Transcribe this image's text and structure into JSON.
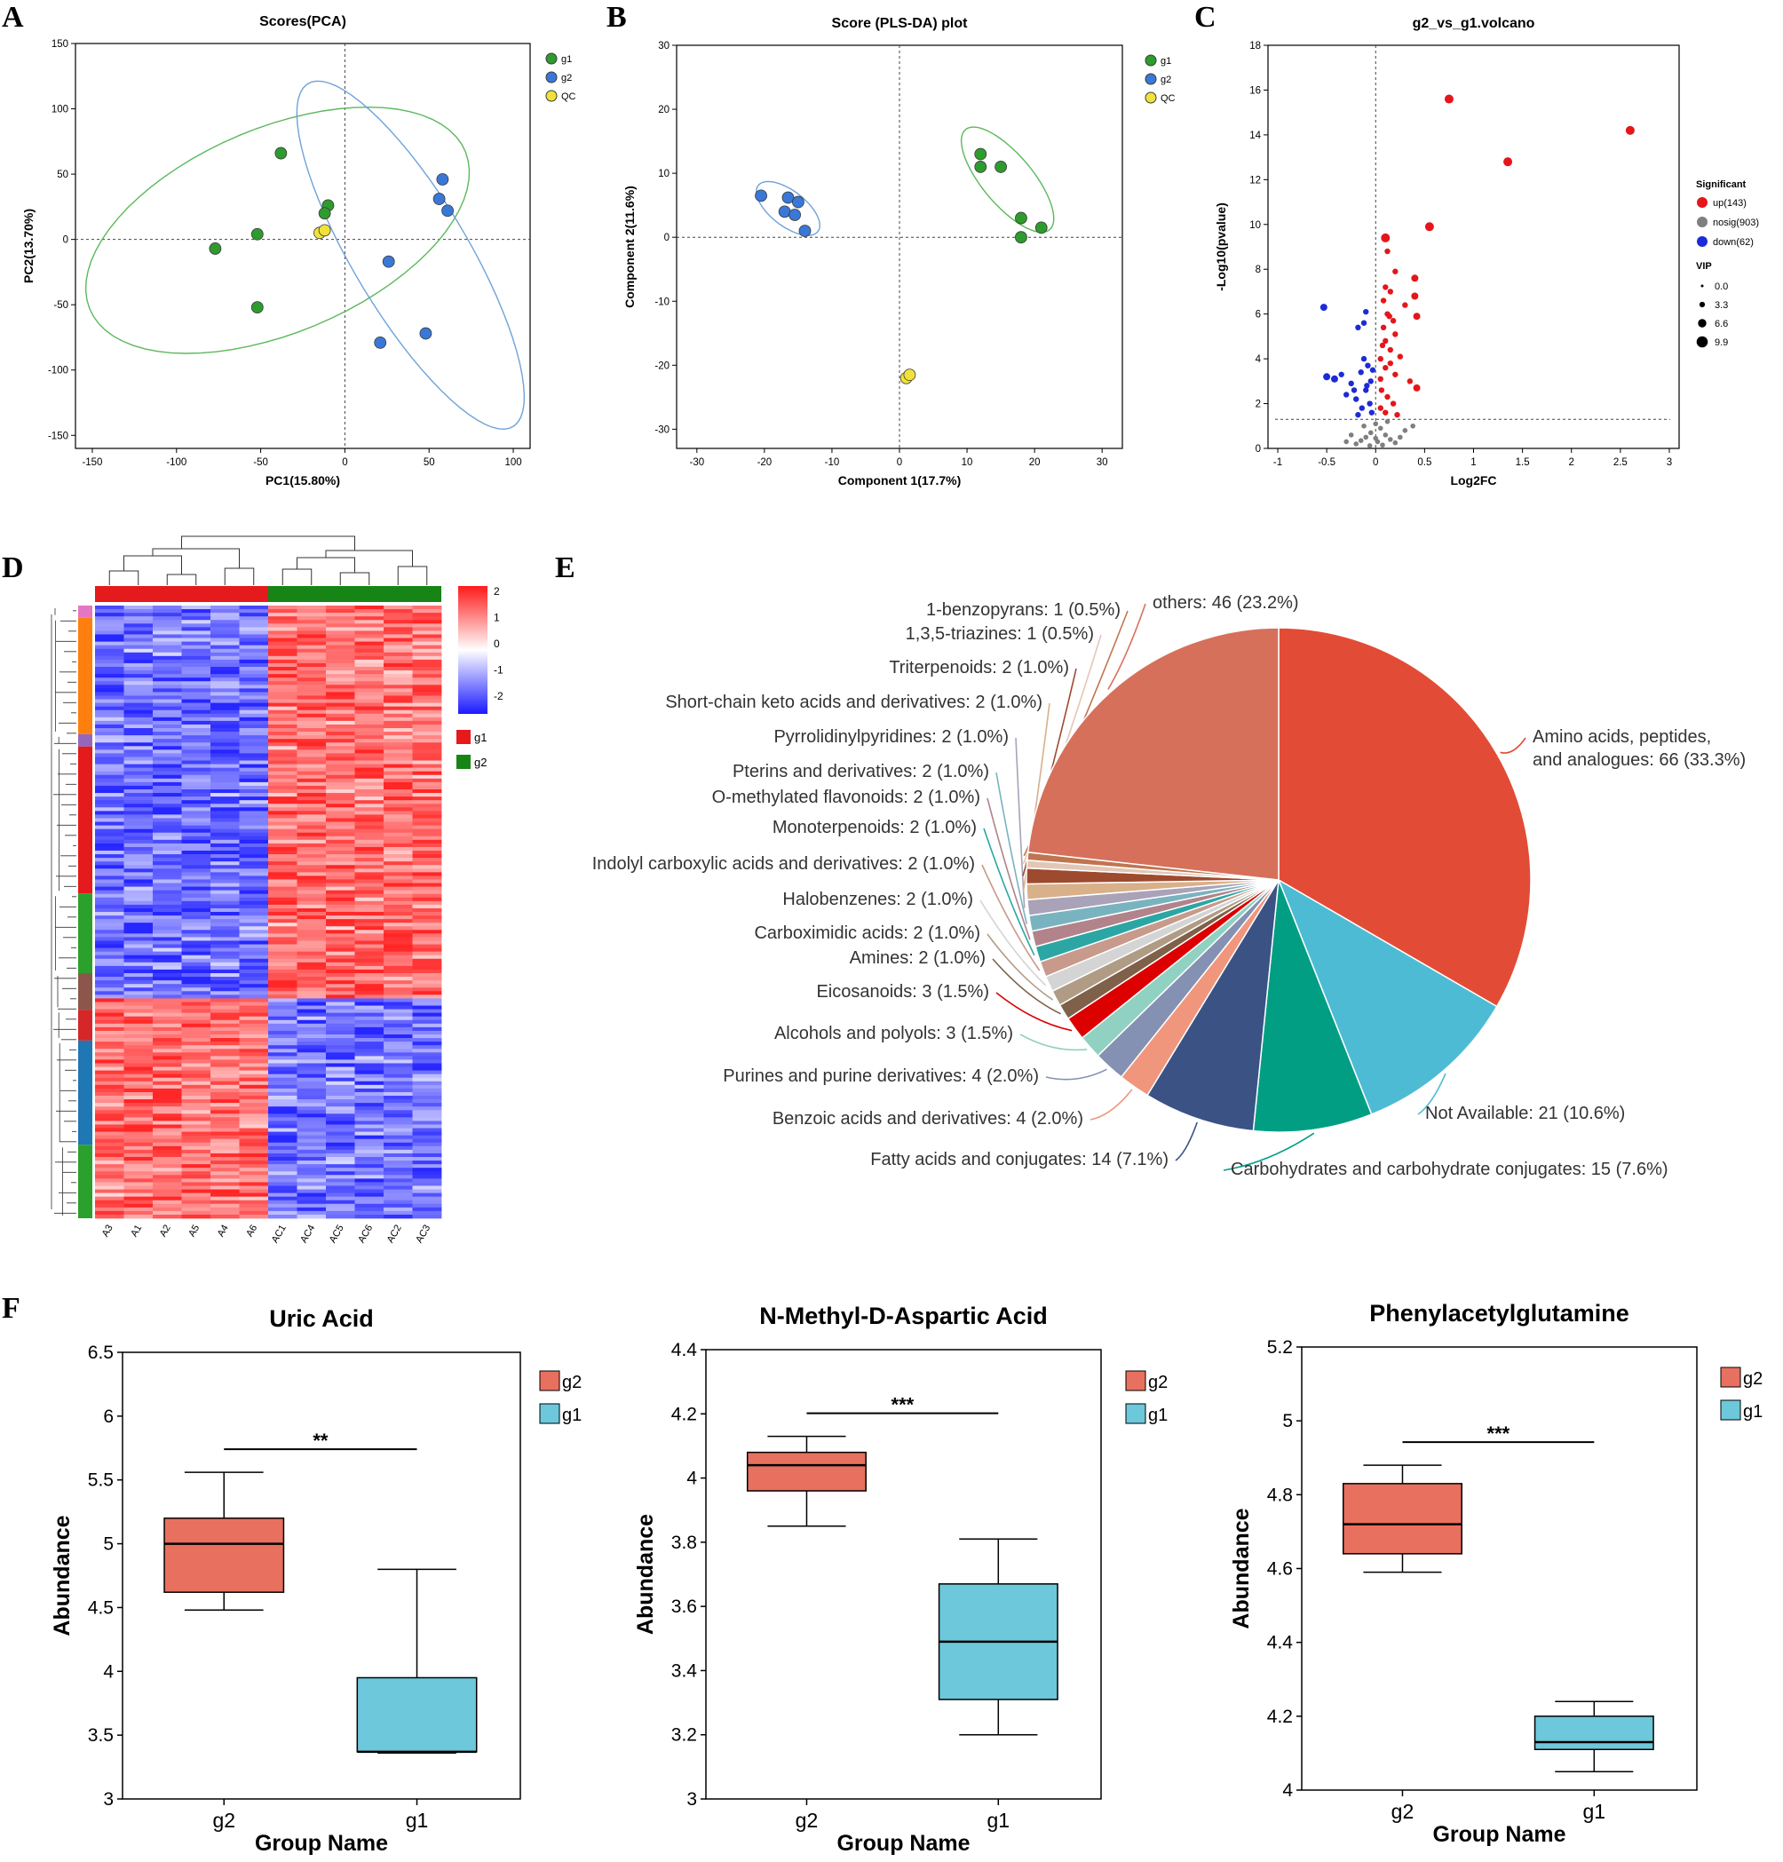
{
  "chart_data": [
    {
      "panel": "A",
      "type": "scatter",
      "title": "Scores(PCA)",
      "xlabel": "PC1(15.80%)",
      "ylabel": "PC2(13.70%)",
      "xlim": [
        -160,
        110
      ],
      "ylim": [
        -160,
        150
      ],
      "xticks": [
        -150,
        -100,
        -50,
        0,
        50,
        100
      ],
      "yticks": [
        -150,
        -100,
        -50,
        0,
        50,
        100,
        150
      ],
      "legend": [
        "g1",
        "g2",
        "QC"
      ],
      "series": [
        {
          "name": "g1",
          "color": "#2e9b2e",
          "points": [
            [
              -38,
              66
            ],
            [
              -10,
              26
            ],
            [
              -12,
              20
            ],
            [
              -52,
              4
            ],
            [
              -77,
              -7
            ],
            [
              -52,
              -52
            ]
          ]
        },
        {
          "name": "g2",
          "color": "#3a78d8",
          "points": [
            [
              58,
              46
            ],
            [
              56,
              31
            ],
            [
              61,
              22
            ],
            [
              26,
              -17
            ],
            [
              48,
              -72
            ],
            [
              21,
              -79
            ]
          ]
        },
        {
          "name": "QC",
          "color": "#f1e23a",
          "points": [
            [
              -15,
              5
            ],
            [
              -12,
              7
            ]
          ]
        }
      ],
      "ellipses": [
        {
          "group": "g1",
          "color": "#5cb85c",
          "cx": -40,
          "cy": 7,
          "rx": 128,
          "ry": 74,
          "angle": 34
        },
        {
          "group": "g2",
          "color": "#6ea3d8",
          "cx": 39,
          "cy": -12,
          "rx": 145,
          "ry": 36,
          "angle": -66
        }
      ]
    },
    {
      "panel": "B",
      "type": "scatter",
      "title": "Score (PLS-DA) plot",
      "xlabel": "Component 1(17.7%)",
      "ylabel": "Component 2(11.6%)",
      "xlim": [
        -33,
        33
      ],
      "ylim": [
        -33,
        30
      ],
      "xticks": [
        -30,
        -20,
        -10,
        0,
        10,
        20,
        30
      ],
      "yticks": [
        -30,
        -20,
        -10,
        0,
        10,
        20,
        30
      ],
      "legend": [
        "g1",
        "g2",
        "QC"
      ],
      "series": [
        {
          "name": "g1",
          "color": "#2e9b2e",
          "points": [
            [
              12,
              13
            ],
            [
              12,
              11
            ],
            [
              15,
              11
            ],
            [
              18,
              3
            ],
            [
              21,
              1.5
            ],
            [
              18,
              0
            ]
          ]
        },
        {
          "name": "g2",
          "color": "#3a78d8",
          "points": [
            [
              -20.5,
              6.5
            ],
            [
              -16.5,
              6.2
            ],
            [
              -15,
              5.5
            ],
            [
              -17,
              4
            ],
            [
              -15.5,
              3.5
            ],
            [
              -14,
              1
            ]
          ]
        },
        {
          "name": "QC",
          "color": "#f1e23a",
          "points": [
            [
              1,
              -22
            ],
            [
              1.5,
              -21.5
            ]
          ]
        }
      ],
      "ellipses": [
        {
          "group": "g1",
          "color": "#5cb85c",
          "cx": 16,
          "cy": 9,
          "rx": 10,
          "ry": 3.8,
          "angle": -52
        },
        {
          "group": "g2",
          "color": "#6ea3d8",
          "cx": -16.5,
          "cy": 4.5,
          "rx": 5.7,
          "ry": 2.7,
          "angle": -40
        }
      ]
    },
    {
      "panel": "C",
      "type": "scatter",
      "title": "g2_vs_g1.volcano",
      "xlabel": "Log2FC",
      "ylabel": "-Log10(pvalue)",
      "xlim": [
        -1.1,
        3.1
      ],
      "ylim": [
        0,
        18
      ],
      "xticks": [
        -1,
        -0.5,
        0,
        0.5,
        1,
        1.5,
        2,
        2.5,
        3
      ],
      "yticks": [
        0,
        2,
        4,
        6,
        8,
        10,
        12,
        14,
        16,
        18
      ],
      "threshold_y": 1.3,
      "legend_title": "Significant",
      "legend": [
        "up(143)",
        "nosig(903)",
        "down(62)"
      ],
      "vip_title": "VIP",
      "vip_legend": [
        "0.0",
        "3.3",
        "6.6",
        "9.9"
      ],
      "series": [
        {
          "name": "up",
          "color": "#e4161b",
          "points": [
            [
              0.75,
              15.6
            ],
            [
              2.6,
              14.2
            ],
            [
              1.35,
              12.8
            ],
            [
              0.55,
              9.9
            ],
            [
              0.1,
              9.4
            ],
            [
              0.12,
              8.8
            ],
            [
              0.2,
              7.9
            ],
            [
              0.4,
              7.6
            ],
            [
              0.4,
              6.8
            ],
            [
              0.42,
              5.9
            ],
            [
              0.1,
              7.2
            ],
            [
              0.15,
              7.0
            ],
            [
              0.3,
              6.4
            ],
            [
              0.12,
              6.0
            ],
            [
              0.18,
              5.7
            ],
            [
              0.08,
              5.4
            ],
            [
              0.2,
              5.1
            ],
            [
              0.1,
              4.8
            ],
            [
              0.15,
              4.4
            ],
            [
              0.25,
              4.1
            ],
            [
              0.05,
              4.0
            ],
            [
              0.1,
              3.6
            ],
            [
              0.2,
              3.3
            ],
            [
              0.35,
              3.0
            ],
            [
              0.42,
              2.7
            ],
            [
              0.06,
              2.6
            ],
            [
              0.12,
              2.3
            ],
            [
              0.18,
              2.0
            ],
            [
              0.05,
              1.8
            ],
            [
              0.1,
              1.6
            ],
            [
              0.22,
              1.5
            ],
            [
              0.05,
              3.1
            ],
            [
              0.15,
              3.8
            ],
            [
              0.08,
              6.6
            ],
            [
              0.14,
              5.9
            ],
            [
              0.07,
              4.6
            ]
          ]
        },
        {
          "name": "nosig",
          "color": "#7f7f7f",
          "points": [
            [
              0.0,
              1.1
            ],
            [
              0.05,
              0.9
            ],
            [
              -0.05,
              0.7
            ],
            [
              0.1,
              0.6
            ],
            [
              -0.1,
              0.5
            ],
            [
              0.15,
              0.4
            ],
            [
              -0.15,
              0.35
            ],
            [
              0.02,
              0.3
            ],
            [
              0.2,
              0.25
            ],
            [
              -0.2,
              0.2
            ],
            [
              0.07,
              0.15
            ],
            [
              -0.06,
              0.12
            ],
            [
              0.3,
              0.8
            ],
            [
              0.38,
              1.0
            ],
            [
              -0.25,
              0.6
            ],
            [
              0.12,
              1.2
            ],
            [
              -0.12,
              1.0
            ],
            [
              0.25,
              0.5
            ],
            [
              -0.3,
              0.3
            ],
            [
              0.0,
              0.45
            ]
          ]
        },
        {
          "name": "down",
          "color": "#1d2bd6",
          "points": [
            [
              -0.53,
              6.3
            ],
            [
              -0.1,
              6.1
            ],
            [
              -0.18,
              5.4
            ],
            [
              -0.12,
              5.6
            ],
            [
              -0.5,
              3.2
            ],
            [
              -0.42,
              3.1
            ],
            [
              -0.35,
              3.3
            ],
            [
              -0.25,
              2.9
            ],
            [
              -0.3,
              2.4
            ],
            [
              -0.12,
              4.0
            ],
            [
              -0.08,
              3.7
            ],
            [
              -0.15,
              3.4
            ],
            [
              -0.05,
              3.0
            ],
            [
              -0.1,
              2.6
            ],
            [
              -0.2,
              2.2
            ],
            [
              -0.06,
              2.0
            ],
            [
              -0.14,
              1.8
            ],
            [
              -0.04,
              1.6
            ],
            [
              -0.18,
              1.5
            ],
            [
              -0.09,
              2.8
            ],
            [
              -0.03,
              3.5
            ],
            [
              -0.22,
              2.6
            ]
          ]
        }
      ]
    },
    {
      "panel": "D",
      "type": "heatmap",
      "columns": [
        "A3",
        "A1",
        "A2",
        "A5",
        "A4",
        "A6",
        "AC1",
        "AC4",
        "AC5",
        "AC6",
        "AC2",
        "AC3"
      ],
      "groups": [
        "g1",
        "g2"
      ],
      "group_colors": [
        "#e41a1c",
        "#168516"
      ],
      "scale_ticks": [
        "2",
        "1",
        "0",
        "-1",
        "-2"
      ],
      "scale_range": [
        -2,
        2
      ]
    },
    {
      "panel": "E",
      "type": "pie",
      "slices": [
        {
          "label": "Amino acids, peptides, and analogues: 66 (33.3%)",
          "value": 33.3,
          "color": "#e24c36"
        },
        {
          "label": "Not Available: 21 (10.6%)",
          "value": 10.6,
          "color": "#4ebbd4"
        },
        {
          "label": "Carbohydrates and carbohydrate conjugates: 15 (7.6%)",
          "value": 7.6,
          "color": "#019e84"
        },
        {
          "label": "Fatty acids and conjugates: 14 (7.1%)",
          "value": 7.1,
          "color": "#3b5285"
        },
        {
          "label": "Benzoic acids and derivatives: 4 (2.0%)",
          "value": 2.0,
          "color": "#f0967d"
        },
        {
          "label": "Purines and purine derivatives: 4 (2.0%)",
          "value": 2.0,
          "color": "#8491b3"
        },
        {
          "label": "Alcohols and polyols: 3 (1.5%)",
          "value": 1.5,
          "color": "#91d1c2"
        },
        {
          "label": "Eicosanoids: 3 (1.5%)",
          "value": 1.5,
          "color": "#dc0000"
        },
        {
          "label": "Amines: 2 (1.0%)",
          "value": 1.0,
          "color": "#7e6148"
        },
        {
          "label": "Carboximidic acids: 2 (1.0%)",
          "value": 1.0,
          "color": "#b09c85"
        },
        {
          "label": "Halobenzenes: 2 (1.0%)",
          "value": 1.0,
          "color": "#d4d4d4"
        },
        {
          "label": "Indolyl carboxylic acids and derivatives: 2 (1.0%)",
          "value": 1.0,
          "color": "#c79a8c"
        },
        {
          "label": "Monoterpenoids: 2 (1.0%)",
          "value": 1.0,
          "color": "#2ca6a4"
        },
        {
          "label": "O-methylated flavonoids: 2 (1.0%)",
          "value": 1.0,
          "color": "#b2838a"
        },
        {
          "label": "Pterins and derivatives: 2 (1.0%)",
          "value": 1.0,
          "color": "#7ab3c0"
        },
        {
          "label": "Pyrrolidinylpyridines: 2 (1.0%)",
          "value": 1.0,
          "color": "#a9a2b8"
        },
        {
          "label": "Short-chain keto acids and derivatives: 2 (1.0%)",
          "value": 1.0,
          "color": "#d8b08a"
        },
        {
          "label": "Triterpenoids: 2 (1.0%)",
          "value": 1.0,
          "color": "#9e4a2e"
        },
        {
          "label": "1,3,5-triazines: 1 (0.5%)",
          "value": 0.5,
          "color": "#e3c7b6"
        },
        {
          "label": "1-benzopyrans: 1 (0.5%)",
          "value": 0.5,
          "color": "#c0754f"
        },
        {
          "label": "others: 46 (23.2%)",
          "value": 23.2,
          "color": "#d6705b"
        }
      ]
    },
    {
      "panel": "F",
      "type": "box",
      "title": "Uric Acid",
      "xlabel": "Group Name",
      "ylabel": "Abundance",
      "ylim": [
        3,
        6.5
      ],
      "yticks": [
        "3",
        "3.5",
        "4",
        "4.5",
        "5",
        "5.5",
        "6",
        "6.5"
      ],
      "significance": "**",
      "groups": [
        {
          "name": "g2",
          "color": "#e8705f",
          "min": 4.48,
          "q1": 4.62,
          "median": 5.0,
          "q3": 5.2,
          "max": 5.56
        },
        {
          "name": "g1",
          "color": "#6cc8da",
          "min": 3.36,
          "q1": 3.37,
          "median": 3.37,
          "q3": 3.95,
          "max": 4.8
        }
      ]
    },
    {
      "panel": "F",
      "type": "box",
      "title": "N-Methyl-D-Aspartic Acid",
      "xlabel": "Group Name",
      "ylabel": "Abundance",
      "ylim": [
        3,
        4.4
      ],
      "yticks": [
        "3",
        "3.2",
        "3.4",
        "3.6",
        "3.8",
        "4",
        "4.2",
        "4.4"
      ],
      "significance": "***",
      "groups": [
        {
          "name": "g2",
          "color": "#e8705f",
          "min": 3.85,
          "q1": 3.96,
          "median": 4.04,
          "q3": 4.08,
          "max": 4.13
        },
        {
          "name": "g1",
          "color": "#6cc8da",
          "min": 3.2,
          "q1": 3.31,
          "median": 3.49,
          "q3": 3.67,
          "max": 3.81
        }
      ]
    },
    {
      "panel": "F",
      "type": "box",
      "title": "Phenylacetylglutamine",
      "xlabel": "Group Name",
      "ylabel": "Abundance",
      "ylim": [
        4,
        5.2
      ],
      "yticks": [
        "4",
        "4.2",
        "4.4",
        "4.6",
        "4.8",
        "5",
        "5.2"
      ],
      "significance": "***",
      "groups": [
        {
          "name": "g2",
          "color": "#e8705f",
          "min": 4.59,
          "q1": 4.64,
          "median": 4.72,
          "q3": 4.83,
          "max": 4.88
        },
        {
          "name": "g1",
          "color": "#6cc8da",
          "min": 4.05,
          "q1": 4.11,
          "median": 4.13,
          "q3": 4.2,
          "max": 4.24
        }
      ]
    }
  ],
  "panel_letters": [
    "A",
    "B",
    "C",
    "D",
    "E",
    "F"
  ]
}
